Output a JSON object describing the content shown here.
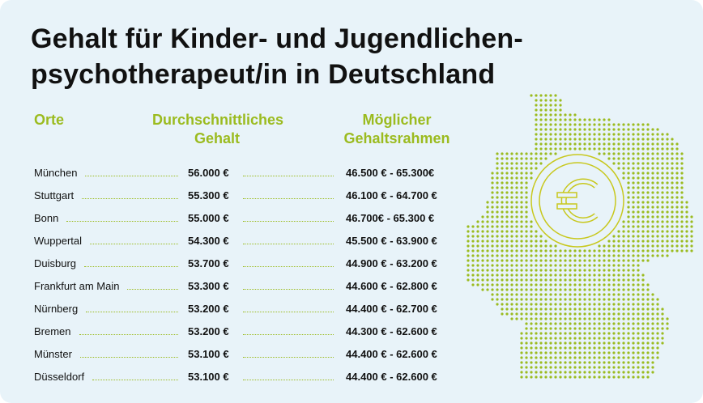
{
  "title_line1": "Gehalt für Kinder- und Jugendlichen-",
  "title_line2": "psychotherapeut/in in Deutschland",
  "headers": {
    "city": "Orte",
    "avg_l1": "Durchschnittliches",
    "avg_l2": "Gehalt",
    "range_l1": "Möglicher",
    "range_l2": "Gehaltsrahmen"
  },
  "rows": [
    {
      "city": "München",
      "avg": "56.000 €",
      "range": "46.500 € - 65.300€"
    },
    {
      "city": "Stuttgart",
      "avg": "55.300 €",
      "range": "46.100 € - 64.700 €"
    },
    {
      "city": "Bonn",
      "avg": "55.000 €",
      "range": "46.700€ - 65.300 €"
    },
    {
      "city": "Wuppertal",
      "avg": "54.300 €",
      "range": "45.500 € - 63.900 €"
    },
    {
      "city": "Duisburg",
      "avg": "53.700 €",
      "range": "44.900 € - 63.200 €"
    },
    {
      "city": "Frankfurt am Main",
      "avg": "53.300 €",
      "range": "44.600 € - 62.800 €"
    },
    {
      "city": "Nürnberg",
      "avg": "53.200 €",
      "range": "44.400 € - 62.700 €"
    },
    {
      "city": "Bremen",
      "avg": "53.200 €",
      "range": "44.300 € - 62.600 €"
    },
    {
      "city": "Münster",
      "avg": "53.100 €",
      "range": "44.400 € - 62.600 €"
    },
    {
      "city": "Düsseldorf",
      "avg": "53.100 €",
      "range": "44.400 € - 62.600 €"
    }
  ],
  "colors": {
    "accent": "#9bbb1f",
    "coin": "#c8c81e",
    "bg": "#e8f3f9"
  },
  "icon": "euro-coin-icon"
}
